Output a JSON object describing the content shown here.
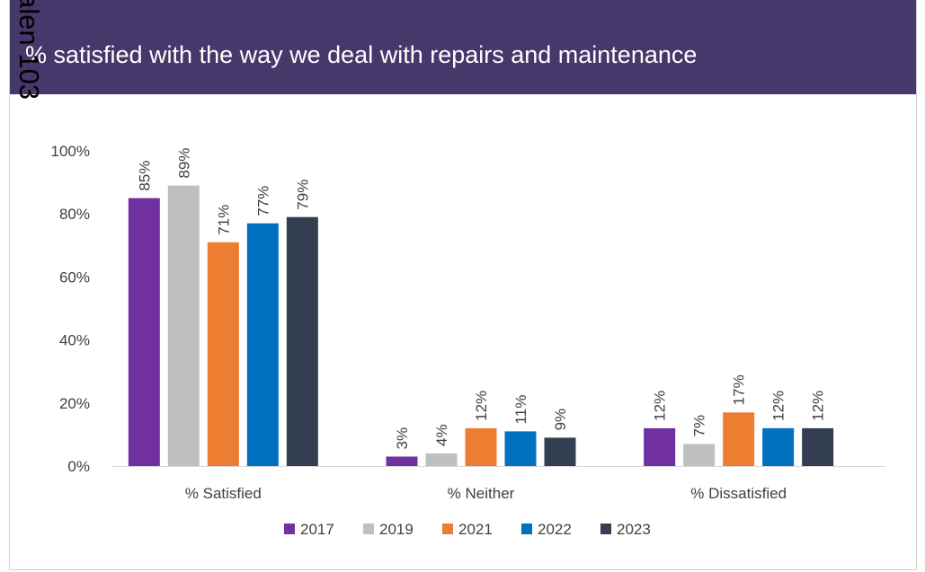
{
  "chart_data": {
    "type": "bar",
    "title": "% satisfied with the way we deal with repairs and maintenance",
    "annotation": "alen 103",
    "categories": [
      "% Satisfied",
      "% Neither",
      "% Dissatisfied"
    ],
    "series": [
      {
        "name": "2017",
        "color": "#7030a0",
        "values": [
          85,
          3,
          12
        ],
        "value_labels": [
          "85%",
          "3%",
          "12%"
        ]
      },
      {
        "name": "2019",
        "color": "#bfbfbf",
        "values": [
          89,
          4,
          7
        ],
        "value_labels": [
          "89%",
          "4%",
          "7%"
        ]
      },
      {
        "name": "2021",
        "color": "#ed7d31",
        "values": [
          71,
          12,
          17
        ],
        "value_labels": [
          "71%",
          "12%",
          "17%"
        ]
      },
      {
        "name": "2022",
        "color": "#0070c0",
        "values": [
          77,
          11,
          12
        ],
        "value_labels": [
          "77%",
          "11%",
          "12%"
        ]
      },
      {
        "name": "2023",
        "color": "#333f50",
        "values": [
          79,
          9,
          12
        ],
        "value_labels": [
          "79%",
          "9%",
          "12%"
        ]
      }
    ],
    "ylim": [
      0,
      100
    ],
    "yticks": [
      {
        "value": 0,
        "label": "0%"
      },
      {
        "value": 20,
        "label": "20%"
      },
      {
        "value": 40,
        "label": "40%"
      },
      {
        "value": 60,
        "label": "60%"
      },
      {
        "value": 80,
        "label": "80%"
      },
      {
        "value": 100,
        "label": "100%"
      }
    ],
    "grid": false,
    "legend": "bottom"
  }
}
